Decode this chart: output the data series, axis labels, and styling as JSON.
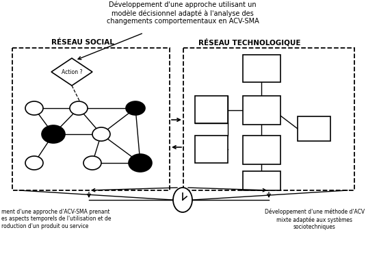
{
  "title_top": "Développement d'une approche utilisant un\nmodèle décisionnel adapté à l'analyse des\nchangements comportementaux en ACV-SMA",
  "label_social": "RÉSEAU SOCIAL",
  "label_techno": "RÉSEAU TECHNOLOGIQUE",
  "text_bottom_left": "ment d'une approche d'ACV-SMA prenant\nes aspects temporels de l'utilisation et de\nroduction d'un produit ou service",
  "text_bottom_right": "Développement d'une méthode d'ACV\nmixte adaptée aux systèmes\nsociotechniques",
  "action_label": "Action ?",
  "bg_color": "#ffffff"
}
